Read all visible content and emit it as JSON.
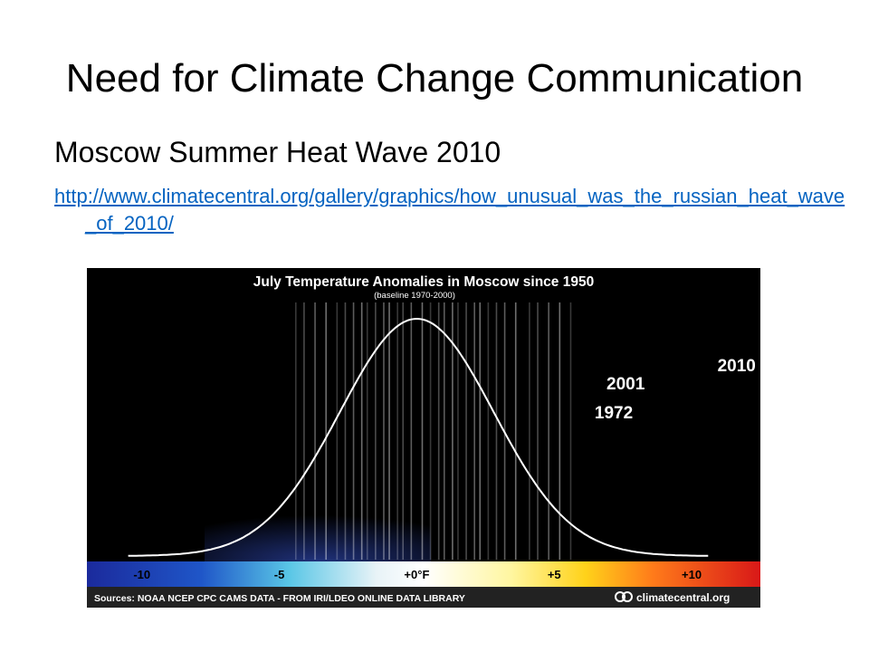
{
  "slide": {
    "title": "Need for Climate Change Communication",
    "subtitle": "Moscow Summer Heat Wave 2010",
    "link": "http://www.climatecentral.org/gallery/graphics/how_unusual_was_the_russian_heat_wave_of_2010/"
  },
  "colors": {
    "link": "#0563c1",
    "curve": "#ffffff",
    "historical_years": "#ffffff",
    "highlight_1972": "#ffd21a",
    "highlight_2001": "#ff9a1a",
    "highlight_2010": "#e8231a",
    "footer_background": "#222222"
  },
  "chart_data": {
    "type": "histogram-strip",
    "title": "July Temperature Anomalies in Moscow since 1950",
    "subtitle": "(baseline 1970-2000)",
    "xlim": [
      -12,
      12.5
    ],
    "x_unit": "°F",
    "ticks": [
      {
        "value": -10,
        "label": "-10"
      },
      {
        "value": -5,
        "label": "-5"
      },
      {
        "value": 0,
        "label": "+0°F"
      },
      {
        "value": 5,
        "label": "+5"
      },
      {
        "value": 10,
        "label": "+10"
      }
    ],
    "distribution": {
      "mean": 0,
      "sd": 2.8
    },
    "historical_anomalies": [
      -4.4,
      -4.1,
      -3.7,
      -3.3,
      -2.9,
      -2.6,
      -2.3,
      -2.0,
      -1.8,
      -1.5,
      -1.2,
      -1.0,
      -0.7,
      -0.5,
      -0.2,
      0.2,
      0.5,
      0.8,
      1.0,
      1.3,
      1.5,
      1.8,
      2.1,
      2.3,
      2.6,
      2.9,
      3.2,
      3.6,
      4.1,
      4.4,
      4.8,
      5.2,
      5.6
    ],
    "highlights": [
      {
        "label": "1972",
        "value": 7.2,
        "color": "#ffd21a"
      },
      {
        "label": "2001",
        "value": 7.6,
        "color": "#ff9a1a"
      },
      {
        "label": "2010",
        "value": 11.7,
        "color": "#e8231a"
      }
    ],
    "source": "Sources: NOAA NCEP CPC CAMS DATA - FROM IRI/LDEO ONLINE DATA LIBRARY",
    "brand": "climatecentral.org"
  }
}
